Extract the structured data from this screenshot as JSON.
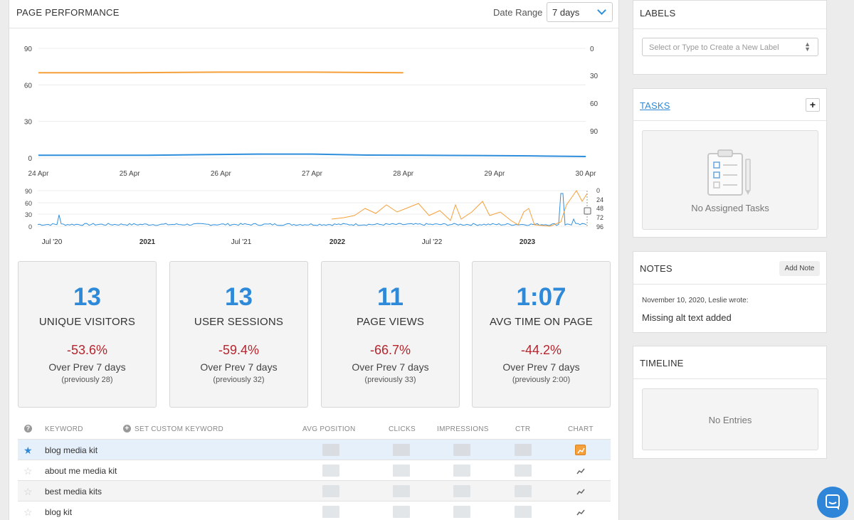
{
  "page_performance": {
    "title": "PAGE PERFORMANCE",
    "date_range_label": "Date Range",
    "date_range_value": "7 days"
  },
  "main_chart": {
    "left_ticks": [
      "90",
      "60",
      "30",
      "0"
    ],
    "right_ticks": [
      "0",
      "30",
      "60",
      "90"
    ],
    "x_ticks": [
      "24 Apr",
      "25 Apr",
      "26 Apr",
      "27 Apr",
      "28 Apr",
      "29 Apr",
      "30 Apr"
    ],
    "series": [
      {
        "color": "#f5a03a",
        "values": [
          70,
          70,
          70.5,
          70.5,
          70
        ]
      },
      {
        "color": "#2f8fdc",
        "values": [
          1,
          1,
          1,
          1.5,
          2,
          2,
          1.2,
          1,
          0.8,
          0.5,
          0
        ]
      }
    ]
  },
  "overview_chart": {
    "left_ticks": [
      "90",
      "60",
      "30",
      "0"
    ],
    "right_ticks": [
      "0",
      "24",
      "48",
      "72",
      "96"
    ],
    "x_ticks": [
      "Jul '20",
      "2021",
      "Jul '21",
      "2022",
      "Jul '22",
      "2023"
    ],
    "x_ticks_bold": [
      false,
      true,
      false,
      true,
      false,
      true
    ]
  },
  "stats": [
    {
      "value": "13",
      "label": "UNIQUE VISITORS",
      "change": "-53.6%",
      "over": "Over Prev 7 days",
      "prev": "(previously 28)"
    },
    {
      "value": "13",
      "label": "USER SESSIONS",
      "change": "-59.4%",
      "over": "Over Prev 7 days",
      "prev": "(previously 32)"
    },
    {
      "value": "11",
      "label": "PAGE VIEWS",
      "change": "-66.7%",
      "over": "Over Prev 7 days",
      "prev": "(previously 33)"
    },
    {
      "value": "1:07",
      "label": "AVG TIME ON PAGE",
      "change": "-44.2%",
      "over": "Over Prev 7 days",
      "prev": "(previously 2:00)"
    }
  ],
  "keywords_table": {
    "headers": {
      "keyword": "KEYWORD",
      "custom": "SET CUSTOM KEYWORD",
      "avg_position": "AVG POSITION",
      "clicks": "CLICKS",
      "impressions": "IMPRESSIONS",
      "ctr": "CTR",
      "chart": "CHART"
    },
    "rows": [
      {
        "keyword": "blog media kit",
        "starred": true
      },
      {
        "keyword": "about me media kit",
        "starred": false
      },
      {
        "keyword": "best media kits",
        "starred": false
      },
      {
        "keyword": "blog kit",
        "starred": false
      }
    ]
  },
  "labels_panel": {
    "title": "LABELS",
    "placeholder": "Select or Type to Create a New Label"
  },
  "tasks_panel": {
    "title": "TASKS",
    "plus": "+",
    "empty": "No Assigned Tasks"
  },
  "notes_panel": {
    "title": "NOTES",
    "add_button": "Add Note",
    "note_meta": "November 10, 2020, Leslie wrote:",
    "note_text": "Missing alt text added"
  },
  "timeline_panel": {
    "title": "TIMELINE",
    "empty": "No Entries"
  },
  "colors": {
    "accent": "#2e8ad8",
    "negative": "#b5262e",
    "orange": "#f5a03a"
  }
}
